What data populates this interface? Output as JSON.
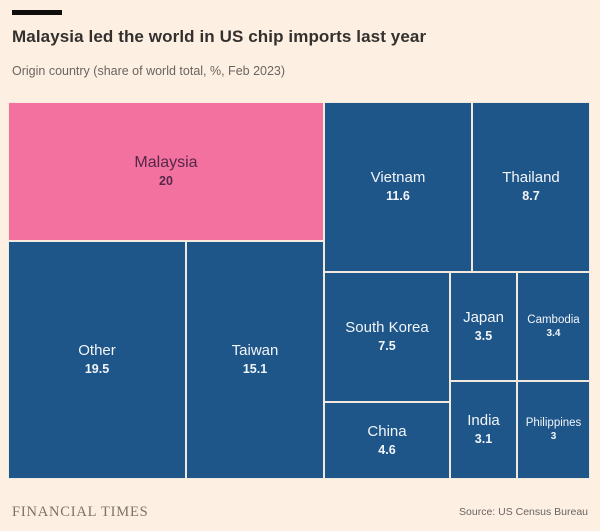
{
  "header": {
    "title": "Malaysia led the world in US chip imports last year",
    "subtitle": "Origin country (share of world total, %, Feb 2023)"
  },
  "footer": {
    "brand": "FINANCIAL TIMES",
    "source": "Source: US Census Bureau"
  },
  "colors": {
    "background": "#fdf0e3",
    "tile_blue": "#1f568a",
    "highlight_pink": "#f2719f",
    "tile_text": "#f2f5f8",
    "highlight_text": "#55284a",
    "title_text": "#33302e",
    "subtitle_text": "#6b645f"
  },
  "chart_data": {
    "type": "treemap",
    "title": "Malaysia led the world in US chip imports last year",
    "subtitle": "Origin country (share of world total, %, Feb 2023)",
    "source": "US Census Bureau",
    "unit": "% share of world total, Feb 2023",
    "highlighted_category": "Malaysia",
    "tiles": [
      {
        "label": "Malaysia",
        "value": 20,
        "value_text": "20",
        "highlighted": true
      },
      {
        "label": "Vietnam",
        "value": 11.6,
        "value_text": "11.6",
        "highlighted": false
      },
      {
        "label": "Thailand",
        "value": 8.7,
        "value_text": "8.7",
        "highlighted": false
      },
      {
        "label": "Other",
        "value": 19.5,
        "value_text": "19.5",
        "highlighted": false
      },
      {
        "label": "Taiwan",
        "value": 15.1,
        "value_text": "15.1",
        "highlighted": false
      },
      {
        "label": "South Korea",
        "value": 7.5,
        "value_text": "7.5",
        "highlighted": false
      },
      {
        "label": "Japan",
        "value": 3.5,
        "value_text": "3.5",
        "highlighted": false
      },
      {
        "label": "Cambodia",
        "value": 3.4,
        "value_text": "3.4",
        "highlighted": false
      },
      {
        "label": "China",
        "value": 4.6,
        "value_text": "4.6",
        "highlighted": false
      },
      {
        "label": "India",
        "value": 3.1,
        "value_text": "3.1",
        "highlighted": false
      },
      {
        "label": "Philippines",
        "value": 3,
        "value_text": "3",
        "highlighted": false
      }
    ]
  }
}
